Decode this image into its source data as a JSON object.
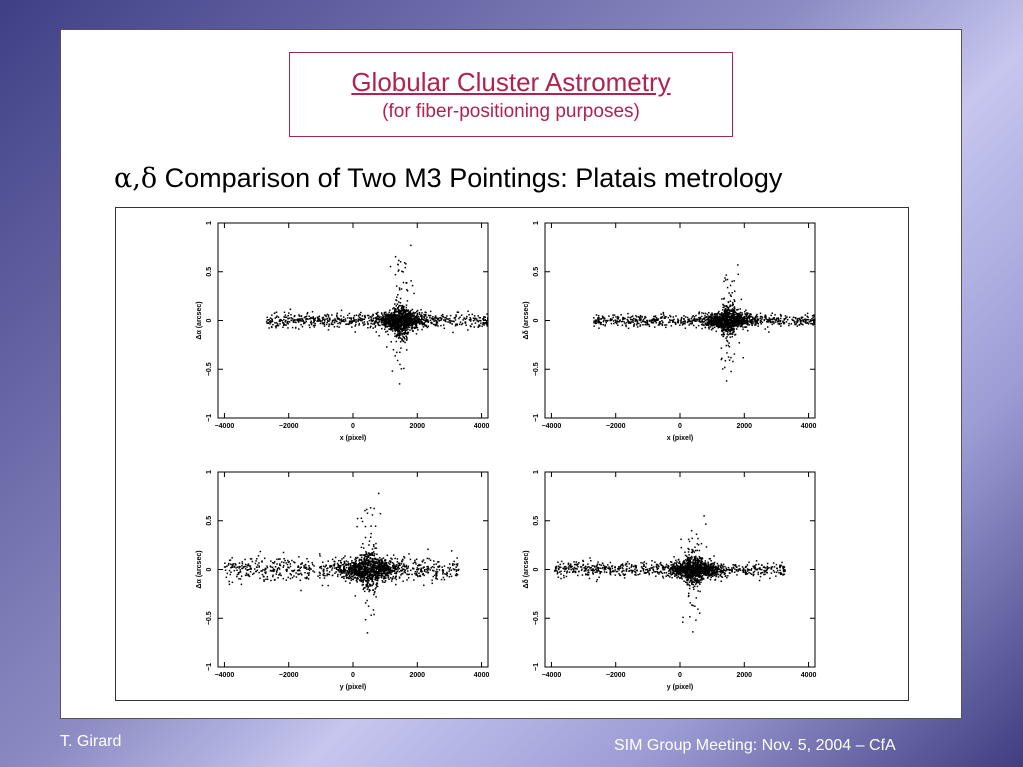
{
  "slide": {
    "title": "Globular Cluster Astrometry",
    "subtitle": "(for fiber-positioning purposes)",
    "heading_greek": "α,δ",
    "heading_text": " Comparison of Two M3 Pointings:  Platais metrology",
    "footer_left": "T. Girard",
    "footer_right": "SIM Group Meeting:  Nov. 5, 2004 – CfA"
  },
  "chart_data": [
    {
      "type": "scatter",
      "title": "",
      "xlabel": "x   (pixel)",
      "ylabel": "Δα   (arcsec)",
      "xlim": [
        -4200,
        4200
      ],
      "ylim": [
        -1,
        1
      ],
      "xticks": [
        "−4000",
        "−2000",
        "0",
        "2000",
        "4000"
      ],
      "yticks": [
        "−1",
        "−0.5",
        "0",
        "0.5",
        "1"
      ],
      "distribution": {
        "x_range": [
          -2700,
          4200
        ],
        "center_x": 1500,
        "center_width": 350,
        "core_spread": 0.15,
        "field_spread": 0.035,
        "outlier_min": -0.65,
        "outlier_max": 0.77
      }
    },
    {
      "type": "scatter",
      "title": "",
      "xlabel": "x   (pixel)",
      "ylabel": "Δδ   (arcsec)",
      "xlim": [
        -4200,
        4200
      ],
      "ylim": [
        -1,
        1
      ],
      "xticks": [
        "−4000",
        "−2000",
        "0",
        "2000",
        "4000"
      ],
      "yticks": [
        "−1",
        "−0.5",
        "0",
        "0.5",
        "1"
      ],
      "distribution": {
        "x_range": [
          -2700,
          4200
        ],
        "center_x": 1500,
        "center_width": 350,
        "core_spread": 0.13,
        "field_spread": 0.03,
        "outlier_min": -0.62,
        "outlier_max": 0.57
      }
    },
    {
      "type": "scatter",
      "title": "",
      "xlabel": "y   (pixel)",
      "ylabel": "Δα   (arcsec)",
      "xlim": [
        -4200,
        4200
      ],
      "ylim": [
        -1,
        1
      ],
      "xticks": [
        "−4000",
        "−2000",
        "0",
        "2000",
        "4000"
      ],
      "yticks": [
        "−1",
        "−0.5",
        "0",
        "0.5",
        "1"
      ],
      "distribution": {
        "x_range": [
          -4000,
          3300
        ],
        "center_x": 500,
        "center_width": 450,
        "core_spread": 0.16,
        "field_spread": 0.06,
        "outlier_min": -0.65,
        "outlier_max": 0.78
      }
    },
    {
      "type": "scatter",
      "title": "",
      "xlabel": "y   (pixel)",
      "ylabel": "Δδ   (arcsec)",
      "xlim": [
        -4200,
        4200
      ],
      "ylim": [
        -1,
        1
      ],
      "xticks": [
        "−4000",
        "−2000",
        "0",
        "2000",
        "4000"
      ],
      "yticks": [
        "−1",
        "−0.5",
        "0",
        "0.5",
        "1"
      ],
      "distribution": {
        "x_range": [
          -3900,
          3300
        ],
        "center_x": 450,
        "center_width": 400,
        "core_spread": 0.13,
        "field_spread": 0.04,
        "outlier_min": -0.64,
        "outlier_max": 0.55
      }
    }
  ]
}
